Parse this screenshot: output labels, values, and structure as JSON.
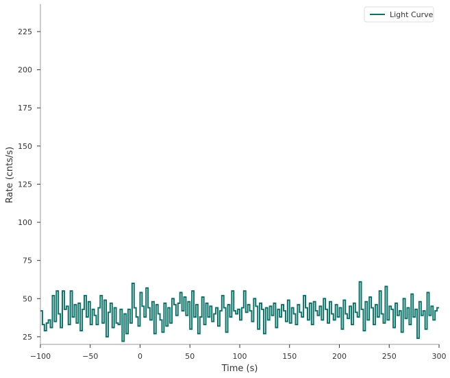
{
  "chart_data": {
    "type": "line",
    "drawstyle": "steps",
    "xlabel": "Time (s)",
    "ylabel": "Rate (cnts/s)",
    "xlim": [
      -100,
      300
    ],
    "ylim": [
      20,
      243
    ],
    "xticks": [
      -100,
      -50,
      0,
      50,
      100,
      150,
      200,
      250,
      300
    ],
    "yticks": [
      25,
      50,
      75,
      100,
      125,
      150,
      175,
      200,
      225
    ],
    "legend_position": "top-right",
    "grid": false,
    "series": [
      {
        "name": "Light Curve",
        "color": "#0b7268",
        "x": [
          -100,
          -98,
          -96,
          -94,
          -92,
          -90,
          -88,
          -86,
          -84,
          -82,
          -80,
          -78,
          -76,
          -74,
          -72,
          -70,
          -68,
          -66,
          -64,
          -62,
          -60,
          -58,
          -56,
          -54,
          -52,
          -50,
          -48,
          -46,
          -44,
          -42,
          -40,
          -38,
          -36,
          -34,
          -32,
          -30,
          -28,
          -26,
          -24,
          -22,
          -20,
          -18,
          -16,
          -14,
          -12,
          -10,
          -8,
          -6,
          -4,
          -2,
          0,
          2,
          4,
          6,
          8,
          10,
          12,
          14,
          16,
          18,
          20,
          22,
          24,
          26,
          28,
          30,
          32,
          34,
          36,
          38,
          40,
          42,
          44,
          46,
          48,
          50,
          52,
          54,
          56,
          58,
          60,
          62,
          64,
          66,
          68,
          70,
          72,
          74,
          76,
          78,
          80,
          82,
          84,
          86,
          88,
          90,
          92,
          94,
          96,
          98,
          100,
          102,
          104,
          106,
          108,
          110,
          112,
          114,
          116,
          118,
          120,
          122,
          124,
          126,
          128,
          130,
          132,
          134,
          136,
          138,
          140,
          142,
          144,
          146,
          148,
          150,
          152,
          154,
          156,
          158,
          160,
          162,
          164,
          166,
          168,
          170,
          172,
          174,
          176,
          178,
          180,
          182,
          184,
          186,
          188,
          190,
          192,
          194,
          196,
          198,
          200,
          202,
          204,
          206,
          208,
          210,
          212,
          214,
          216,
          218,
          220,
          222,
          224,
          226,
          228,
          230,
          232,
          234,
          236,
          238,
          240,
          242,
          244,
          246,
          248,
          250,
          252,
          254,
          256,
          258,
          260,
          262,
          264,
          266,
          268,
          270,
          272,
          274,
          276,
          278,
          280,
          282,
          284,
          286,
          288,
          290,
          292,
          294,
          296,
          298
        ],
        "values": [
          42,
          33,
          29,
          34,
          36,
          31,
          52,
          35,
          55,
          40,
          31,
          55,
          43,
          45,
          33,
          55,
          38,
          46,
          34,
          47,
          29,
          43,
          52,
          38,
          48,
          33,
          43,
          39,
          33,
          44,
          52,
          34,
          49,
          25,
          41,
          47,
          31,
          44,
          34,
          33,
          43,
          22,
          40,
          27,
          43,
          34,
          60,
          44,
          38,
          32,
          54,
          45,
          38,
          57,
          44,
          36,
          48,
          27,
          46,
          40,
          36,
          28,
          47,
          32,
          44,
          34,
          50,
          46,
          39,
          47,
          54,
          42,
          51,
          39,
          48,
          30,
          55,
          38,
          46,
          27,
          38,
          51,
          33,
          47,
          38,
          45,
          35,
          40,
          44,
          32,
          42,
          52,
          44,
          28,
          46,
          38,
          55,
          42,
          40,
          43,
          36,
          44,
          55,
          41,
          46,
          42,
          35,
          50,
          45,
          30,
          47,
          43,
          27,
          44,
          36,
          45,
          39,
          47,
          31,
          43,
          38,
          46,
          42,
          35,
          49,
          34,
          44,
          40,
          33,
          46,
          41,
          38,
          52,
          44,
          36,
          47,
          33,
          48,
          42,
          39,
          45,
          36,
          50,
          43,
          34,
          48,
          40,
          36,
          46,
          38,
          44,
          30,
          49,
          40,
          37,
          45,
          33,
          47,
          41,
          38,
          61,
          43,
          29,
          48,
          36,
          51,
          44,
          33,
          46,
          38,
          55,
          40,
          34,
          58,
          36,
          45,
          43,
          31,
          47,
          39,
          42,
          28,
          50,
          37,
          44,
          33,
          53,
          38,
          43,
          24,
          48,
          39,
          42,
          30,
          54,
          39,
          45,
          36,
          42,
          44
        ]
      }
    ]
  }
}
